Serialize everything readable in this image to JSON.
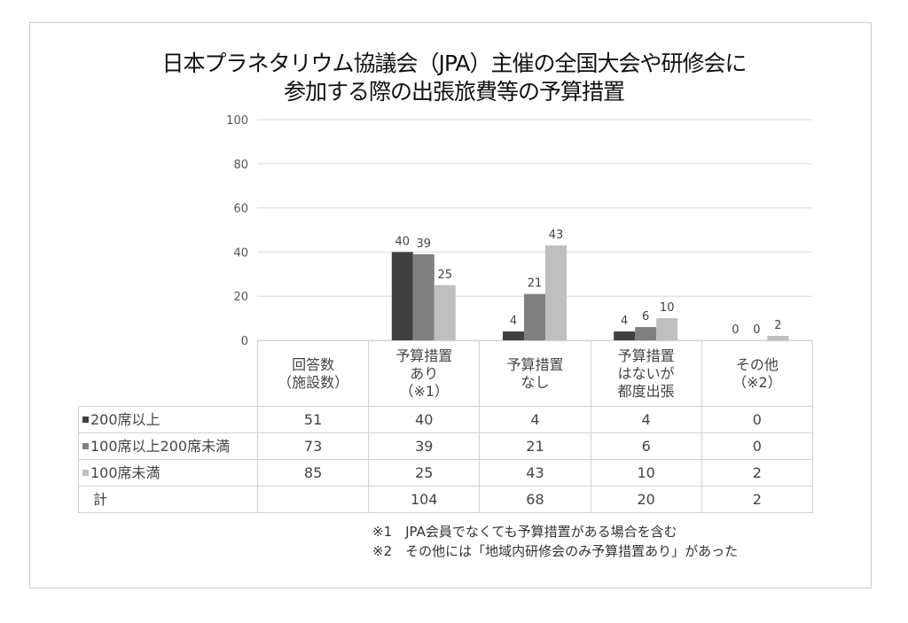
{
  "chart_data": {
    "type": "bar",
    "title_lines": [
      "日本プラネタリウム協議会（JPA）主催の全国大会や研修会に",
      "参加する際の出張旅費等の予算措置"
    ],
    "categories": [
      "回答数\n（施設数）",
      "予算措置\nあり\n（※1）",
      "予算措置\nなし",
      "予算措置\nはないが\n都度出張",
      "その他\n（※2）"
    ],
    "ylim": [
      0,
      100
    ],
    "yticks": [
      0,
      20,
      40,
      60,
      80,
      100
    ],
    "grid": true,
    "series": [
      {
        "name": "200席以上",
        "color": "#404040",
        "values": [
          51,
          40,
          4,
          4,
          0
        ]
      },
      {
        "name": "100席以上200席未満",
        "color": "#808080",
        "values": [
          73,
          39,
          21,
          6,
          0
        ]
      },
      {
        "name": "100席未満",
        "color": "#bfbfbf",
        "values": [
          85,
          25,
          43,
          10,
          2
        ]
      }
    ],
    "plotted_categories": [
      1,
      2,
      3,
      4
    ],
    "total": {
      "name": "計",
      "values": [
        "",
        "104",
        "68",
        "20",
        "2"
      ]
    }
  },
  "notes": [
    "※1　JPA会員でなくても予算措置がある場合を含む",
    "※2　その他には「地域内研修会のみ予算措置あり」があった"
  ]
}
